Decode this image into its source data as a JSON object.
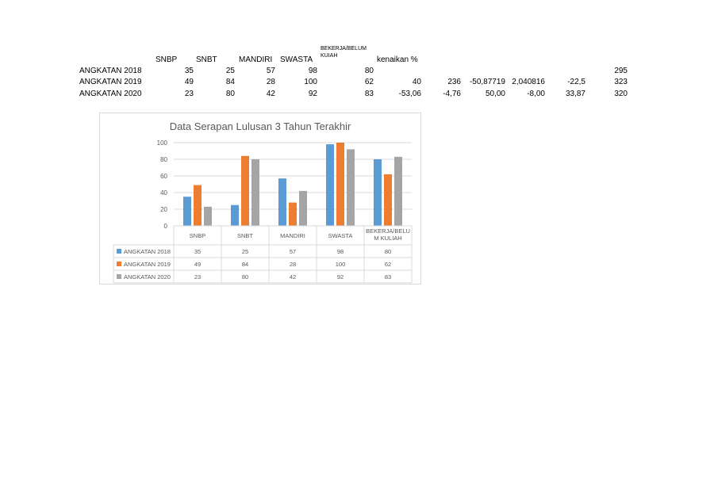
{
  "sheet": {
    "headers": [
      "SNBP",
      "SNBT",
      "MANDIRI",
      "SWASTA",
      "BEKERJA/BELUM KUIAH",
      "kenaikan %"
    ],
    "rows": [
      {
        "label": "ANGKATAN 2018",
        "values": [
          "35",
          "25",
          "57",
          "98",
          "80"
        ],
        "extra": [
          "",
          "",
          "",
          "",
          "",
          ""
        ],
        "total": "295"
      },
      {
        "label": "ANGKATAN 2019",
        "values": [
          "49",
          "84",
          "28",
          "100",
          "62"
        ],
        "extra": [
          "40",
          "236",
          "-50,87719",
          "2,040816",
          "-22,5",
          ""
        ],
        "total": "323"
      },
      {
        "label": "ANGKATAN 2020",
        "values": [
          "23",
          "80",
          "42",
          "92",
          "83"
        ],
        "extra": [
          "-53,06",
          "-4,76",
          "50,00",
          "-8,00",
          "33,87",
          ""
        ],
        "total": "320"
      }
    ]
  },
  "chart_data": {
    "type": "bar",
    "title": "Data Serapan Lulusan 3 Tahun Terakhir",
    "categories": [
      "SNBP",
      "SNBT",
      "MANDIRI",
      "SWASTA",
      "BEKERJA/BELUM KULIAH"
    ],
    "category_lines": [
      [
        "SNBP"
      ],
      [
        "SNBT"
      ],
      [
        "MANDIRI"
      ],
      [
        "SWASTA"
      ],
      [
        "BEKERJA/BELU",
        "M KULIAH"
      ]
    ],
    "series": [
      {
        "name": "ANGKATAN 2018",
        "values": [
          35,
          25,
          57,
          98,
          80
        ],
        "color": "#5b9bd5"
      },
      {
        "name": "ANGKATAN 2019",
        "values": [
          49,
          84,
          28,
          100,
          62
        ],
        "color": "#ed7d31"
      },
      {
        "name": "ANGKATAN 2020",
        "values": [
          23,
          80,
          42,
          92,
          83
        ],
        "color": "#a5a5a5"
      }
    ],
    "ylim": [
      0,
      100
    ],
    "yticks": [
      0,
      20,
      40,
      60,
      80,
      100
    ],
    "grid": true,
    "legend": "data-table-left"
  }
}
